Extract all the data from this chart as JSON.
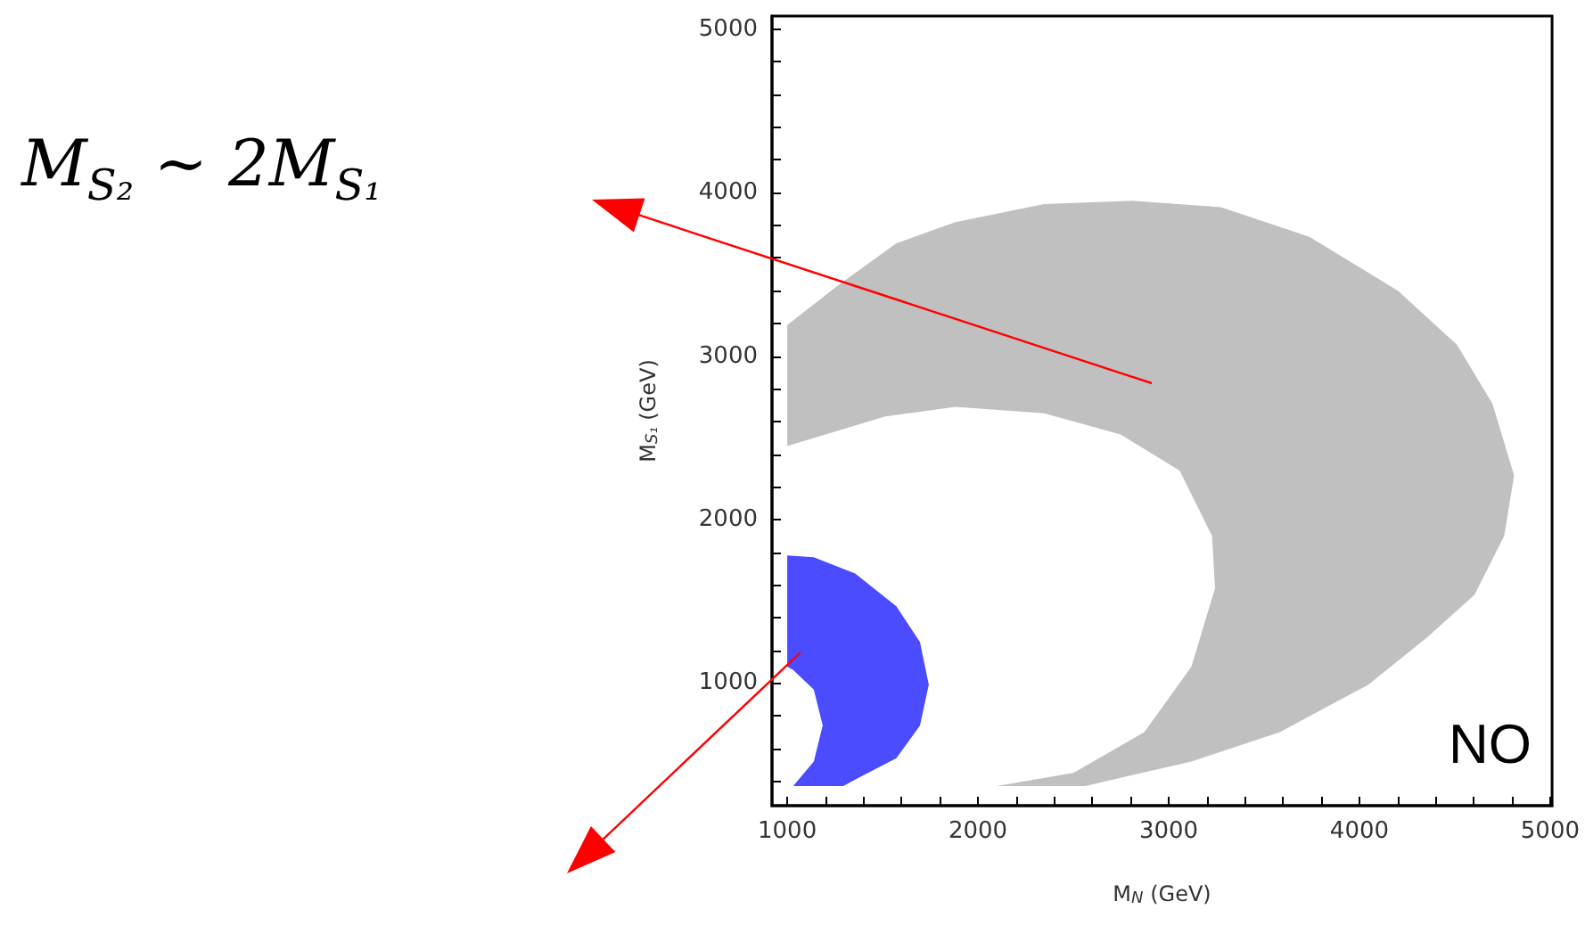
{
  "chart_data": {
    "type": "area",
    "xlabel": "M$_{N}$ (GeV)",
    "ylabel": "M$_{S₁}$ (GeV)",
    "xlim": [
      920,
      5010
    ],
    "ylim": [
      250,
      5080
    ],
    "xticks": [
      1000,
      {
        "value": 1200,
        "label": null
      },
      {
        "value": 1400,
        "label": null
      },
      {
        "value": 1600,
        "label": null
      },
      {
        "value": 1800,
        "label": null
      },
      2000,
      {
        "value": 2200,
        "label": null
      },
      {
        "value": 2400,
        "label": null
      },
      {
        "value": 2600,
        "label": null
      },
      {
        "value": 2800,
        "label": null
      },
      3000,
      {
        "value": 3200,
        "label": null
      },
      {
        "value": 3400,
        "label": null
      },
      {
        "value": 3600,
        "label": null
      },
      {
        "value": 3800,
        "label": null
      },
      4000,
      {
        "value": 4200,
        "label": null
      },
      {
        "value": 4400,
        "label": null
      },
      {
        "value": 4600,
        "label": null
      },
      {
        "value": 4800,
        "label": null
      },
      5000
    ],
    "yticks": [
      {
        "value": 400,
        "label": null
      },
      {
        "value": 600,
        "label": null
      },
      {
        "value": 800,
        "label": null
      },
      1000,
      {
        "value": 1200,
        "label": null
      },
      {
        "value": 1400,
        "label": null
      },
      {
        "value": 1600,
        "label": null
      },
      {
        "value": 1800,
        "label": null
      },
      2000,
      {
        "value": 2200,
        "label": null
      },
      {
        "value": 2400,
        "label": null
      },
      {
        "value": 2600,
        "label": null
      },
      {
        "value": 2800,
        "label": null
      },
      3000,
      {
        "value": 3200,
        "label": null
      },
      {
        "value": 3400,
        "label": null
      },
      {
        "value": 3600,
        "label": null
      },
      {
        "value": 3800,
        "label": null
      },
      4000,
      {
        "value": 4200,
        "label": null
      },
      {
        "value": 4400,
        "label": null
      },
      {
        "value": 4600,
        "label": null
      },
      {
        "value": 4800,
        "label": null
      },
      5000
    ],
    "grid": false,
    "series": [
      {
        "color": "#c0c0c0",
        "x": [
          1000,
          1263,
          1572,
          1882,
          2346,
          2810,
          3274,
          3738,
          4202,
          4511,
          4697,
          4811,
          4759,
          4604,
          4356,
          4047,
          3583,
          3119,
          2562,
          2098,
          2500,
          2872,
          3119,
          3243,
          3227,
          3057,
          2748,
          2346,
          1882,
          1510,
          1000
        ],
        "values": [
          3190,
          3430,
          3690,
          3820,
          3930,
          3950,
          3910,
          3730,
          3400,
          3070,
          2710,
          2270,
          1900,
          1540,
          1280,
          990,
          700,
          520,
          370,
          370,
          450,
          700,
          1100,
          1580,
          1900,
          2300,
          2520,
          2650,
          2690,
          2630,
          2450
        ]
      },
      {
        "color": "#4b4bff",
        "x": [
          1000,
          1139,
          1356,
          1572,
          1696,
          1742,
          1696,
          1572,
          1356,
          1294,
          1031,
          1139,
          1186,
          1139,
          1031,
          1000
        ],
        "values": [
          1780,
          1770,
          1670,
          1470,
          1250,
          990,
          740,
          540,
          410,
          370,
          370,
          520,
          740,
          960,
          1080,
          1100
        ]
      }
    ],
    "annotations": [
      "NO",
      "M$_{S₂}$ ∼ 2M$_{S₁}$"
    ]
  }
}
